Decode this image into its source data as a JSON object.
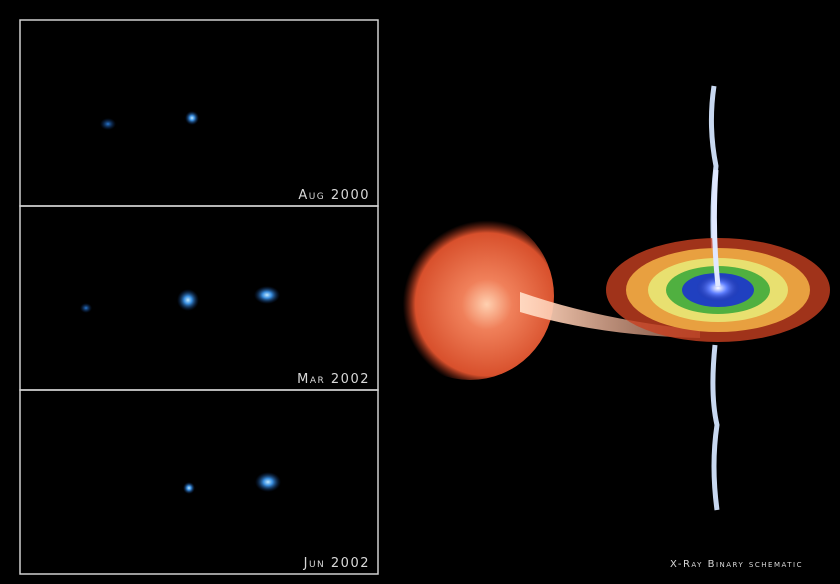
{
  "panels": [
    {
      "label": "Aug 2000"
    },
    {
      "label": "Mar 2002"
    },
    {
      "label": "Jun 2002"
    }
  ],
  "caption": "X-Ray Binary schematic"
}
